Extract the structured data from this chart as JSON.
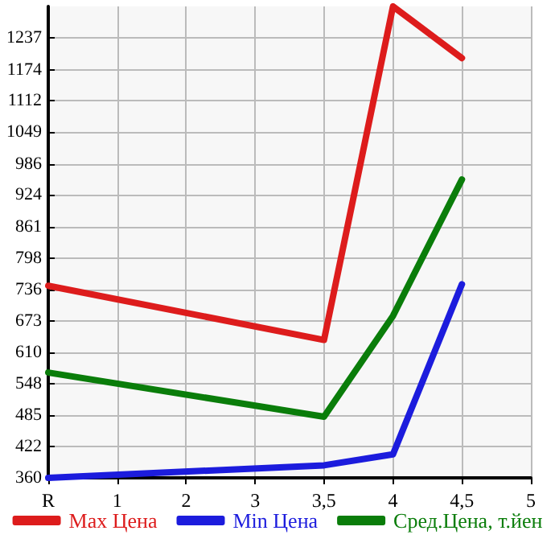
{
  "chart_data": {
    "type": "line",
    "categories": [
      "R",
      "1",
      "2",
      "3",
      "3,5",
      "4",
      "4,5",
      "5"
    ],
    "series": [
      {
        "name": "Max Цена",
        "color": "#dd1c1c",
        "values": [
          743,
          null,
          null,
          null,
          635,
          1300,
          1197,
          null
        ]
      },
      {
        "name": "Min Цена",
        "color": "#1c1cdd",
        "values": [
          360,
          null,
          null,
          null,
          385,
          407,
          746,
          null
        ]
      },
      {
        "name": "Сред.Цена, т.йен",
        "color": "#0a7d0a",
        "values": [
          570,
          null,
          null,
          null,
          482,
          683,
          955,
          null
        ]
      }
    ],
    "ylim": [
      360,
      1300
    ],
    "yticks": [
      360,
      422,
      485,
      548,
      610,
      673,
      736,
      798,
      861,
      924,
      986,
      1049,
      1112,
      1174,
      1237
    ],
    "grid": true,
    "legend": "bottom",
    "marker": "none",
    "line_style": "solid"
  }
}
